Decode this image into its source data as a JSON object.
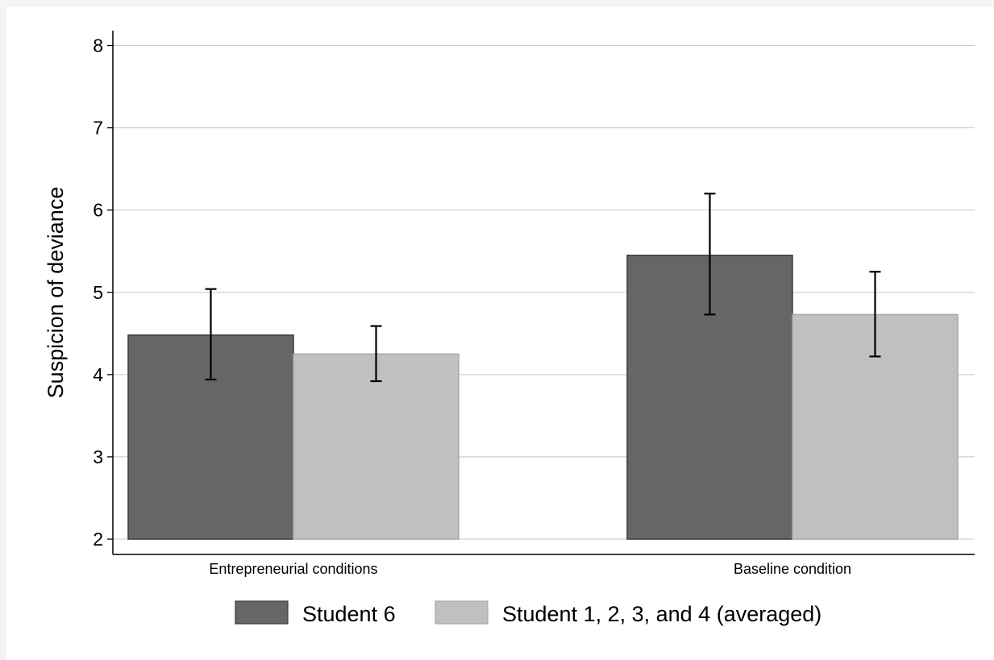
{
  "chart_data": {
    "type": "bar",
    "title": "",
    "xlabel": "",
    "ylabel": "Suspicion of deviance",
    "categories": [
      "Entrepreneurial conditions",
      "Baseline condition"
    ],
    "series": [
      {
        "name": "Student 6",
        "color": "#666666",
        "values": [
          4.48,
          5.45
        ],
        "error_low": [
          3.94,
          4.73
        ],
        "error_high": [
          5.04,
          6.2
        ]
      },
      {
        "name": "Student 1, 2, 3, and 4 (averaged)",
        "color": "#c0c0c0",
        "values": [
          4.25,
          4.73
        ],
        "error_low": [
          3.92,
          4.22
        ],
        "error_high": [
          4.59,
          5.25
        ]
      }
    ],
    "ylim": [
      2,
      8
    ],
    "yticks": [
      "2",
      "3",
      "4",
      "5",
      "6",
      "7",
      "8"
    ],
    "grid": true,
    "legend_position": "bottom"
  }
}
